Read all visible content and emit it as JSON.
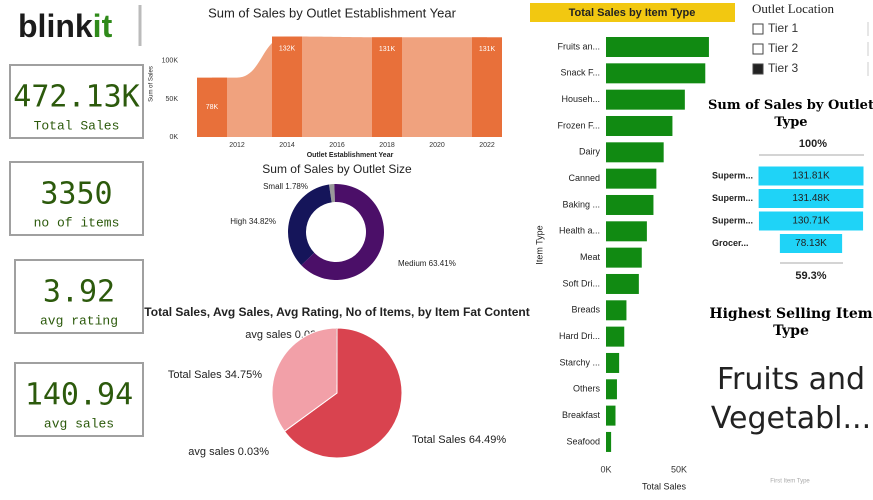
{
  "header": {
    "logo_brand": "blink",
    "logo_accent": "it"
  },
  "kpis": [
    {
      "value": "472.13K",
      "label": "Total Sales"
    },
    {
      "value": "3350",
      "label": "no of items"
    },
    {
      "value": "3.92",
      "label": "avg rating"
    },
    {
      "value": "140.94",
      "label": "avg sales"
    }
  ],
  "slicer": {
    "title": "Outlet Location",
    "options": [
      "Tier 1",
      "Tier 2",
      "Tier 3"
    ],
    "selected": [
      false,
      false,
      true
    ]
  },
  "highlight": {
    "title": "Highest Selling Item Type",
    "value": "Fruits and Vegetabl...",
    "caption": "First Item Type"
  },
  "chart_data": [
    {
      "type": "combo",
      "title": "Sum of Sales by Outlet Establishment Year",
      "x_label": "Outlet Establishment Year",
      "y_label": "Sum of Sales",
      "xlim": [
        2010.4,
        2022.6
      ],
      "xticks": [
        2012,
        2014,
        2016,
        2018,
        2020,
        2022
      ],
      "ylim": [
        0,
        134000
      ],
      "yticks": [
        {
          "value": 0,
          "label": "0K"
        },
        {
          "value": 50000,
          "label": "50K"
        },
        {
          "value": 100000,
          "label": "100K"
        }
      ],
      "area": {
        "x": [
          2011,
          2012,
          2014,
          2018,
          2022
        ],
        "values": [
          78000,
          78000,
          132000,
          131000,
          131000
        ],
        "color": "#f0a27e"
      },
      "bars": {
        "x": [
          2011,
          2014,
          2018,
          2022
        ],
        "values": [
          78000,
          132000,
          131000,
          131000
        ],
        "value_labels": [
          "78K",
          "132K",
          "131K",
          "131K"
        ],
        "color": "#e8703a"
      }
    },
    {
      "type": "donut",
      "title": "Sum of Sales by Outlet Size",
      "categories": [
        "Small",
        "Medium",
        "High"
      ],
      "values": [
        1.78,
        63.41,
        34.82
      ],
      "value_labels": [
        "Small 1.78%",
        "Medium 63.41%",
        "High 34.82%"
      ],
      "colors": [
        "#9a9a9a",
        "#4b0f68",
        "#15155a"
      ]
    },
    {
      "type": "pie",
      "title": "Total Sales, Avg Sales, Avg Rating, No of Items, by Item Fat Content",
      "categories": [
        "Total Sales",
        "avg sales",
        "Total Sales",
        "avg sales"
      ],
      "values": [
        64.49,
        0.03,
        34.75,
        0.03
      ],
      "value_labels": [
        "Total Sales 64.49%",
        "avg sales 0.03%",
        "Total Sales 34.75%",
        "avg sales 0.03%"
      ],
      "colors": [
        "#d9434f",
        "#7a3b3b",
        "#f2a0a8",
        "#7a3b3b"
      ]
    },
    {
      "type": "hbar",
      "title": "Total Sales by Item Type",
      "x_label": "Total Sales",
      "y_label": "Item Type",
      "categories": [
        "Fruits an...",
        "Snack F...",
        "Househ...",
        "Frozen F...",
        "Dairy",
        "Canned",
        "Baking ...",
        "Health a...",
        "Meat",
        "Soft Dri...",
        "Breads",
        "Hard Dri...",
        "Starchy ...",
        "Others",
        "Breakfast",
        "Seafood"
      ],
      "values": [
        70500,
        68000,
        54000,
        45500,
        39500,
        34500,
        32500,
        28000,
        24500,
        22500,
        14000,
        12500,
        9000,
        7500,
        6500,
        3500
      ],
      "color": "#118a12",
      "xlim": [
        0,
        72600
      ],
      "xticks": [
        {
          "value": 0,
          "label": "0K"
        },
        {
          "value": 50000,
          "label": "50K"
        }
      ]
    },
    {
      "type": "funnel",
      "title": "Sum of Sales by Outlet Type",
      "categories": [
        "Superm...",
        "Superm...",
        "Superm...",
        "Grocer..."
      ],
      "values": [
        131810,
        131480,
        130710,
        78130
      ],
      "value_labels": [
        "131.81K",
        "131.48K",
        "130.71K",
        "78.13K"
      ],
      "top_label": "100%",
      "bottom_label": "59.3%",
      "color": "#1fd3f7"
    }
  ]
}
